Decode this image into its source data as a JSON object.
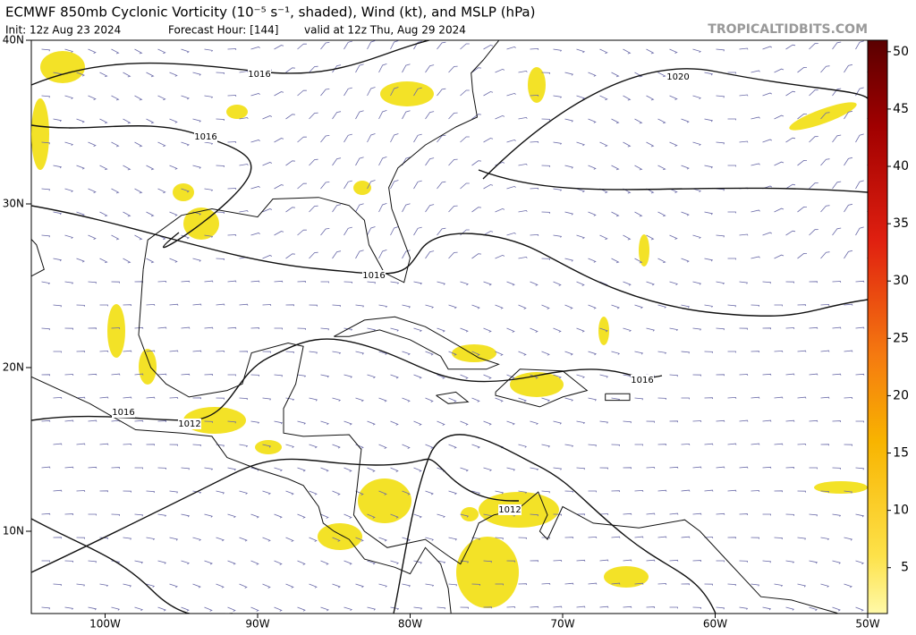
{
  "header": {
    "title": "ECMWF 850mb Cyclonic Vorticity (10⁻⁵ s⁻¹, shaded), Wind (kt), and MSLP (hPa)",
    "init": "Init: 12z Aug 23 2024",
    "forecast_hour": "Forecast Hour: [144]",
    "valid": "valid at 12z Thu, Aug 29 2024",
    "watermark": "TROPICALTIDBITS.COM"
  },
  "map": {
    "lat_labels": [
      "40N",
      "30N",
      "20N",
      "10N"
    ],
    "lon_labels": [
      "100W",
      "90W",
      "80W",
      "70W",
      "60W",
      "50W"
    ],
    "isobar_labels": [
      "1016",
      "1016",
      "1020",
      "1016",
      "1016",
      "1016",
      "1012",
      "1012"
    ]
  },
  "colorbar": {
    "range": [
      1,
      51
    ],
    "ticks": [
      5,
      10,
      15,
      20,
      25,
      30,
      35,
      40,
      45,
      50
    ]
  }
}
